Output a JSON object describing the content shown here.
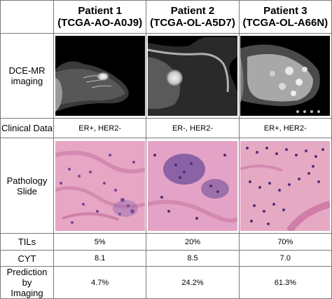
{
  "patients": [
    {
      "name": "Patient 1",
      "id": "(TCGA-AO-A0J9)"
    },
    {
      "name": "Patient 2",
      "id": "(TCGA-OL-A5D7)"
    },
    {
      "name": "Patient 3",
      "id": "(TCGA-OL-A66N)"
    }
  ],
  "rows": {
    "dce_label_1": "DCE-MR",
    "dce_label_2": "imaging",
    "clinical_label": "Clinical Data",
    "path_label_1": "Pathology",
    "path_label_2": "Slide",
    "tils_label": "TILs",
    "cyt_label": "CYT",
    "pred_label_1": "Prediction by",
    "pred_label_2": "Imaging"
  },
  "values": {
    "clinical": [
      "ER+, HER2-",
      "ER-, HER2-",
      "ER+, HER2-"
    ],
    "tils": [
      "5%",
      "20%",
      "70%"
    ],
    "cyt": [
      "8.1",
      "8.5",
      "7.0"
    ],
    "prediction": [
      "4.7%",
      "24.2%",
      "61.3%"
    ]
  },
  "colors": {
    "grid": "#7a7a7a",
    "mri_bg": "#000000",
    "histo_pink": "#e7a6c4",
    "histo_purple": "#5c3a86"
  }
}
